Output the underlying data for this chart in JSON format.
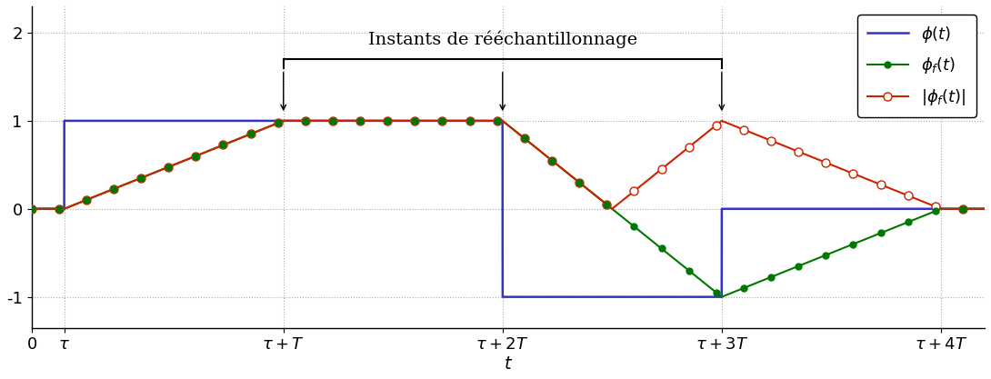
{
  "tau": 0.15,
  "T": 1.0,
  "xlim": [
    0,
    4.35
  ],
  "ylim": [
    -1.35,
    2.3
  ],
  "yticks": [
    -1,
    0,
    1,
    2
  ],
  "phi_color": "#3333cc",
  "phif_color": "#007700",
  "absphif_color": "#cc2200",
  "grid_color": "#aaaaaa",
  "bg_color": "#ffffff",
  "xlabel": "t",
  "annotation_text": "Instants de rééchantillonnage",
  "bits": [
    1,
    1,
    -1
  ]
}
